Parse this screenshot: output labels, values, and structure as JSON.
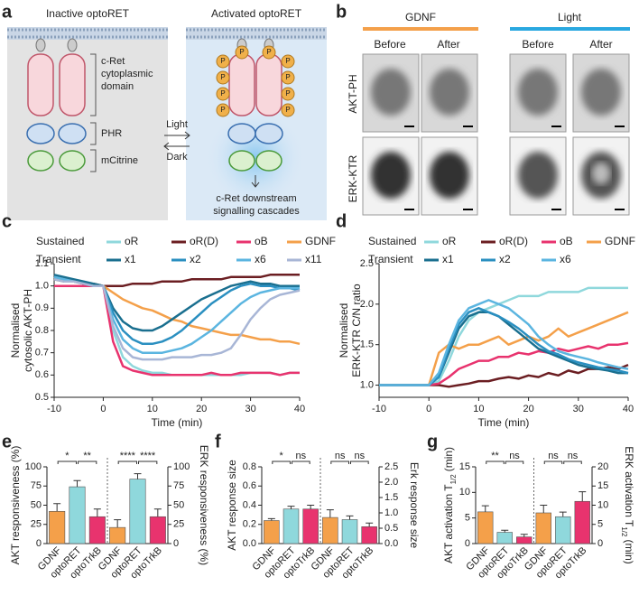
{
  "panel_labels": [
    "a",
    "b",
    "c",
    "d",
    "e",
    "f",
    "g"
  ],
  "panel_a": {
    "inactive_title": "Inactive optoRET",
    "active_title": "Activated optoRET",
    "domain_labels": [
      [
        "c-Ret",
        "cytoplasmic",
        "domain"
      ],
      [
        "PHR"
      ],
      [
        "mCitrine"
      ]
    ],
    "phospho": "P",
    "light": "Light",
    "dark": "Dark",
    "downstream": [
      "c-Ret downstream",
      "signalling cascades"
    ]
  },
  "panel_b": {
    "conditions": [
      "GDNF",
      "Light"
    ],
    "columns": [
      "Before",
      "After",
      "Before",
      "After"
    ],
    "rows": [
      "AKT-PH",
      "ERK-KTR"
    ]
  },
  "chart_data": [
    {
      "type": "line",
      "xlabel": "Time (min)",
      "ylabel": [
        "Normalised",
        "cytosolic AKT-PH"
      ],
      "xlim": [
        -10,
        40
      ],
      "xticks": [
        -10,
        0,
        10,
        20,
        30,
        40
      ],
      "ylim": [
        0.5,
        1.1
      ],
      "yticks": [
        0.5,
        0.6,
        0.7,
        0.8,
        0.9,
        {
          "value": 1,
          "label": "1.0"
        },
        1.1
      ],
      "x": [
        -10,
        -8,
        -6,
        -4,
        -2,
        0,
        2,
        4,
        6,
        8,
        10,
        12,
        14,
        16,
        18,
        20,
        22,
        24,
        26,
        28,
        30,
        32,
        34,
        36,
        38,
        40
      ],
      "series_groups": [
        {
          "name": "Sustained",
          "series": [
            {
              "name": "oR",
              "color": "#8fd8dc",
              "values": [
                1.03,
                1.02,
                1.02,
                1.01,
                1.01,
                1.0,
                0.8,
                0.68,
                0.64,
                0.62,
                0.61,
                0.61,
                0.6,
                0.6,
                0.6,
                0.6,
                0.6,
                0.6,
                0.6,
                0.6,
                0.61,
                0.61,
                0.61,
                0.6,
                0.61,
                0.61
              ]
            },
            {
              "name": "oR(D)",
              "color": "#6b1e22",
              "values": [
                1.03,
                1.02,
                1.02,
                1.01,
                1.01,
                1.0,
                1.0,
                1.0,
                1.01,
                1.01,
                1.01,
                1.02,
                1.02,
                1.02,
                1.03,
                1.03,
                1.03,
                1.03,
                1.04,
                1.04,
                1.04,
                1.04,
                1.05,
                1.05,
                1.05,
                1.05
              ]
            },
            {
              "name": "oB",
              "color": "#e8336e",
              "values": [
                1.0,
                1.0,
                1.0,
                1.0,
                1.0,
                1.0,
                0.75,
                0.64,
                0.62,
                0.61,
                0.6,
                0.6,
                0.6,
                0.6,
                0.6,
                0.6,
                0.61,
                0.6,
                0.6,
                0.61,
                0.61,
                0.61,
                0.61,
                0.6,
                0.61,
                0.61
              ]
            },
            {
              "name": "GDNF",
              "color": "#f4a04a",
              "values": [
                1.03,
                1.03,
                1.02,
                1.01,
                1.0,
                1.0,
                0.97,
                0.94,
                0.92,
                0.9,
                0.89,
                0.87,
                0.85,
                0.84,
                0.82,
                0.81,
                0.8,
                0.79,
                0.78,
                0.78,
                0.77,
                0.76,
                0.76,
                0.75,
                0.75,
                0.74
              ]
            }
          ]
        },
        {
          "name": "Transient",
          "series": [
            {
              "name": "x1",
              "color": "#1a6f8f",
              "values": [
                1.05,
                1.04,
                1.03,
                1.02,
                1.01,
                1.0,
                0.9,
                0.84,
                0.81,
                0.8,
                0.8,
                0.82,
                0.85,
                0.88,
                0.91,
                0.94,
                0.96,
                0.98,
                1.0,
                1.01,
                1.02,
                1.01,
                1.01,
                1.0,
                1.0,
                1.0
              ]
            },
            {
              "name": "x2",
              "color": "#2a8fc0",
              "values": [
                1.04,
                1.03,
                1.02,
                1.01,
                1.0,
                1.0,
                0.88,
                0.8,
                0.76,
                0.74,
                0.74,
                0.75,
                0.77,
                0.8,
                0.84,
                0.88,
                0.92,
                0.95,
                0.98,
                1.0,
                1.01,
                1.0,
                1.0,
                0.99,
                0.99,
                0.98
              ]
            },
            {
              "name": "x6",
              "color": "#5bb5e0",
              "values": [
                1.04,
                1.03,
                1.02,
                1.01,
                1.0,
                1.0,
                0.85,
                0.76,
                0.72,
                0.7,
                0.7,
                0.7,
                0.71,
                0.72,
                0.74,
                0.77,
                0.8,
                0.84,
                0.88,
                0.92,
                0.95,
                0.97,
                0.98,
                0.99,
                0.99,
                0.99
              ]
            },
            {
              "name": "x11",
              "color": "#a8b6d6",
              "values": [
                1.03,
                1.02,
                1.02,
                1.01,
                1.0,
                1.0,
                0.82,
                0.72,
                0.68,
                0.67,
                0.67,
                0.67,
                0.68,
                0.68,
                0.68,
                0.69,
                0.69,
                0.7,
                0.72,
                0.78,
                0.85,
                0.9,
                0.94,
                0.96,
                0.97,
                0.98
              ]
            }
          ]
        }
      ]
    },
    {
      "type": "line",
      "xlabel": "Time (min)",
      "ylabel": [
        "Normalised",
        "ERK-KTR C/N ratio"
      ],
      "xlim": [
        -10,
        40
      ],
      "xticks": [
        -10,
        0,
        10,
        20,
        30,
        40
      ],
      "ylim": [
        0.85,
        2.5
      ],
      "yticks": [
        {
          "value": 1,
          "label": "1.0"
        },
        1.5,
        {
          "value": 2,
          "label": "2.0"
        },
        2.5
      ],
      "x": [
        -10,
        -8,
        -6,
        -4,
        -2,
        0,
        2,
        4,
        6,
        8,
        10,
        12,
        14,
        16,
        18,
        20,
        22,
        24,
        26,
        28,
        30,
        32,
        34,
        36,
        38,
        40
      ],
      "series_groups": [
        {
          "name": "Sustained",
          "series": [
            {
              "name": "oR",
              "color": "#8fd8dc",
              "values": [
                1.0,
                1.0,
                1.0,
                1.0,
                1.0,
                1.0,
                1.05,
                1.3,
                1.6,
                1.8,
                1.9,
                1.95,
                2.0,
                2.05,
                2.1,
                2.1,
                2.1,
                2.15,
                2.15,
                2.15,
                2.15,
                2.2,
                2.2,
                2.2,
                2.2,
                2.2
              ]
            },
            {
              "name": "oR(D)",
              "color": "#6b1e22",
              "values": [
                1.0,
                1.0,
                1.0,
                1.0,
                1.0,
                1.0,
                1.0,
                0.98,
                1.0,
                1.02,
                1.05,
                1.05,
                1.08,
                1.1,
                1.08,
                1.12,
                1.1,
                1.15,
                1.12,
                1.18,
                1.15,
                1.2,
                1.2,
                1.22,
                1.2,
                1.25
              ]
            },
            {
              "name": "oB",
              "color": "#e8336e",
              "values": [
                1.0,
                1.0,
                1.0,
                1.0,
                1.0,
                1.0,
                1.02,
                1.1,
                1.2,
                1.25,
                1.3,
                1.3,
                1.35,
                1.35,
                1.4,
                1.38,
                1.42,
                1.4,
                1.45,
                1.42,
                1.45,
                1.48,
                1.45,
                1.5,
                1.5,
                1.52
              ]
            },
            {
              "name": "GDNF",
              "color": "#f4a04a",
              "values": [
                1.0,
                1.0,
                1.0,
                1.0,
                1.0,
                1.0,
                1.4,
                1.5,
                1.45,
                1.5,
                1.5,
                1.55,
                1.6,
                1.5,
                1.55,
                1.6,
                1.55,
                1.6,
                1.7,
                1.6,
                1.65,
                1.7,
                1.75,
                1.8,
                1.85,
                1.9
              ]
            }
          ]
        },
        {
          "name": "Transient",
          "series": [
            {
              "name": "x1",
              "color": "#1a6f8f",
              "values": [
                1.0,
                1.0,
                1.0,
                1.0,
                1.0,
                1.0,
                1.1,
                1.4,
                1.7,
                1.85,
                1.9,
                1.9,
                1.85,
                1.75,
                1.65,
                1.55,
                1.45,
                1.4,
                1.35,
                1.3,
                1.25,
                1.22,
                1.2,
                1.18,
                1.15,
                1.15
              ]
            },
            {
              "name": "x2",
              "color": "#2a8fc0",
              "values": [
                1.0,
                1.0,
                1.0,
                1.0,
                1.0,
                1.0,
                1.1,
                1.45,
                1.75,
                1.9,
                1.95,
                1.9,
                1.85,
                1.78,
                1.7,
                1.6,
                1.5,
                1.42,
                1.38,
                1.32,
                1.28,
                1.25,
                1.22,
                1.2,
                1.18,
                1.15
              ]
            },
            {
              "name": "x6",
              "color": "#5bb5e0",
              "values": [
                1.0,
                1.0,
                1.0,
                1.0,
                1.0,
                1.0,
                1.15,
                1.5,
                1.8,
                1.95,
                2.0,
                2.05,
                2.0,
                1.95,
                1.85,
                1.75,
                1.6,
                1.5,
                1.42,
                1.38,
                1.35,
                1.32,
                1.28,
                1.25,
                1.22,
                1.2
              ]
            }
          ]
        }
      ]
    },
    {
      "type": "bar",
      "ylabel": "AKT responsiveness (%)",
      "y2label": "ERK responsiveness (%)",
      "ylim": [
        0,
        100
      ],
      "yticks": [
        0,
        25,
        50,
        75,
        100
      ],
      "y2lim": [
        0,
        100
      ],
      "y2ticks": [
        0,
        25,
        50,
        75,
        100
      ],
      "colors": [
        "#f4a04a",
        "#8fd8dc",
        "#e8336e"
      ],
      "groups": [
        {
          "axis": "y",
          "categories": [
            "GDNF",
            "optoRET",
            "optoTrkB"
          ],
          "values": [
            42,
            74,
            35
          ],
          "errors": [
            10,
            8,
            10
          ],
          "significance": [
            "*",
            "**"
          ]
        },
        {
          "axis": "y2",
          "categories": [
            "GDNF",
            "optoRET",
            "optoTrkB"
          ],
          "values": [
            21,
            84,
            35
          ],
          "errors": [
            10,
            7,
            10
          ],
          "significance": [
            "****",
            "****"
          ]
        }
      ]
    },
    {
      "type": "bar",
      "ylabel": "AKT response size",
      "y2label": "Erk response size",
      "ylim": [
        0,
        0.8
      ],
      "yticks": [
        {
          "value": 0,
          "label": "0.0"
        },
        0.2,
        0.4,
        0.6,
        0.8
      ],
      "y2lim": [
        0,
        2.5
      ],
      "y2ticks": [
        {
          "value": 0,
          "label": "0.0"
        },
        0.5,
        {
          "value": 1,
          "label": "1.0"
        },
        1.5,
        {
          "value": 2,
          "label": "2.0"
        },
        2.5
      ],
      "colors": [
        "#f4a04a",
        "#8fd8dc",
        "#e8336e"
      ],
      "groups": [
        {
          "axis": "y",
          "categories": [
            "GDNF",
            "optoRET",
            "optoTrkB"
          ],
          "values": [
            0.24,
            0.36,
            0.36
          ],
          "errors": [
            0.02,
            0.03,
            0.04
          ],
          "significance": [
            "*",
            "ns"
          ]
        },
        {
          "axis": "y2",
          "categories": [
            "GDNF",
            "optoRET",
            "optoTrkB"
          ],
          "values": [
            0.85,
            0.78,
            0.55
          ],
          "errors": [
            0.25,
            0.12,
            0.12
          ],
          "significance": [
            "ns",
            "ns"
          ]
        }
      ]
    },
    {
      "type": "bar",
      "ylabel": [
        "AKT activation T",
        "1/2",
        "(min)"
      ],
      "y2label": [
        "ERK activation T",
        "1/2",
        "(min)"
      ],
      "ylim": [
        0,
        15
      ],
      "yticks": [
        0,
        5,
        10,
        15
      ],
      "y2lim": [
        0,
        20
      ],
      "y2ticks": [
        0,
        5,
        10,
        15,
        20
      ],
      "colors": [
        "#f4a04a",
        "#8fd8dc",
        "#e8336e"
      ],
      "groups": [
        {
          "axis": "y",
          "categories": [
            "GDNF",
            "optoRET",
            "optoTrkB"
          ],
          "values": [
            6.2,
            2.2,
            1.3
          ],
          "errors": [
            1.2,
            0.4,
            0.5
          ],
          "significance": [
            "**",
            "ns"
          ]
        },
        {
          "axis": "y2",
          "categories": [
            "GDNF",
            "optoRET",
            "optoTrkB"
          ],
          "values": [
            8,
            7,
            11
          ],
          "errors": [
            2,
            1.2,
            2.5
          ],
          "significance": [
            "ns",
            "ns"
          ]
        }
      ]
    }
  ]
}
